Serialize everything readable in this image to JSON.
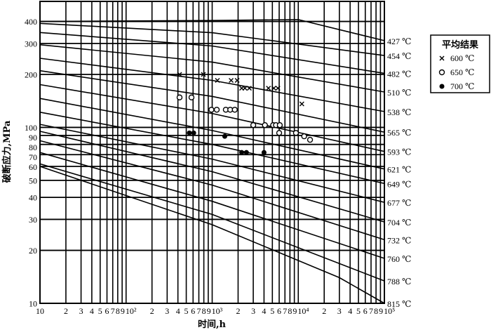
{
  "chart_data": {
    "type": "line",
    "title": "",
    "xlabel": "时间,h",
    "ylabel": "破断应力,MPa",
    "xscale": "log",
    "yscale": "log",
    "xlim": [
      10,
      100000
    ],
    "ylim": [
      10,
      520
    ],
    "grid": true,
    "legend_placement": "right",
    "x_tick_labels": [
      {
        "v": 10,
        "t": "10"
      },
      {
        "v": 20,
        "t": "2"
      },
      {
        "v": 30,
        "t": "3"
      },
      {
        "v": 40,
        "t": "4"
      },
      {
        "v": 50,
        "t": "5"
      },
      {
        "v": 60,
        "t": "6"
      },
      {
        "v": 70,
        "t": "7"
      },
      {
        "v": 80,
        "t": "8"
      },
      {
        "v": 90,
        "t": "9"
      },
      {
        "v": 100,
        "t": "10²"
      },
      {
        "v": 200,
        "t": "2"
      },
      {
        "v": 300,
        "t": "3"
      },
      {
        "v": 400,
        "t": "4"
      },
      {
        "v": 500,
        "t": "5"
      },
      {
        "v": 600,
        "t": "6"
      },
      {
        "v": 700,
        "t": "7"
      },
      {
        "v": 800,
        "t": "8"
      },
      {
        "v": 900,
        "t": "9"
      },
      {
        "v": 1000,
        "t": "10³"
      },
      {
        "v": 2000,
        "t": "2"
      },
      {
        "v": 3000,
        "t": "3"
      },
      {
        "v": 4000,
        "t": "4"
      },
      {
        "v": 5000,
        "t": "5"
      },
      {
        "v": 6000,
        "t": "6"
      },
      {
        "v": 7000,
        "t": "7"
      },
      {
        "v": 8000,
        "t": "8"
      },
      {
        "v": 9000,
        "t": "9"
      },
      {
        "v": 10000,
        "t": "10⁴"
      },
      {
        "v": 20000,
        "t": "2"
      },
      {
        "v": 30000,
        "t": "3"
      },
      {
        "v": 40000,
        "t": "4"
      },
      {
        "v": 50000,
        "t": "5"
      },
      {
        "v": 60000,
        "t": "6"
      },
      {
        "v": 70000,
        "t": "7"
      },
      {
        "v": 80000,
        "t": "8"
      },
      {
        "v": 90000,
        "t": "9"
      },
      {
        "v": 100000,
        "t": "10⁵"
      }
    ],
    "y_tick_labels": [
      {
        "v": 10,
        "t": "10"
      },
      {
        "v": 20,
        "t": "20"
      },
      {
        "v": 30,
        "t": "30"
      },
      {
        "v": 40,
        "t": "40"
      },
      {
        "v": 50,
        "t": "50"
      },
      {
        "v": 60,
        "t": "60"
      },
      {
        "v": 70,
        "t": "70"
      },
      {
        "v": 80,
        "t": "80"
      },
      {
        "v": 90,
        "t": "90"
      },
      {
        "v": 100,
        "t": "100"
      },
      {
        "v": 200,
        "t": "200"
      },
      {
        "v": 300,
        "t": "300"
      },
      {
        "v": 400,
        "t": "400"
      }
    ],
    "curves": [
      {
        "label": "427 ℃",
        "points": [
          [
            10,
            400
          ],
          [
            1000,
            405
          ],
          [
            10000,
            410
          ],
          [
            100000,
            311
          ]
        ]
      },
      {
        "label": "454 ℃",
        "points": [
          [
            10,
            390
          ],
          [
            1000,
            345
          ],
          [
            100000,
            256
          ]
        ]
      },
      {
        "label": "482 ℃",
        "points": [
          [
            10,
            346
          ],
          [
            1000,
            290
          ],
          [
            100000,
            203
          ]
        ]
      },
      {
        "label": "510 ℃",
        "points": [
          [
            10,
            295
          ],
          [
            1000,
            235
          ],
          [
            100000,
            159
          ]
        ]
      },
      {
        "label": "538 ℃",
        "points": [
          [
            10,
            247
          ],
          [
            1000,
            185
          ],
          [
            100000,
            123
          ]
        ]
      },
      {
        "label": "565 ℃",
        "points": [
          [
            10,
            210
          ],
          [
            1000,
            150
          ],
          [
            100000,
            94
          ]
        ]
      },
      {
        "label": "593 ℃",
        "points": [
          [
            10,
            175
          ],
          [
            1000,
            120
          ],
          [
            100000,
            73
          ]
        ]
      },
      {
        "label": "621 ℃",
        "points": [
          [
            10,
            146
          ],
          [
            1000,
            96
          ],
          [
            100000,
            58
          ]
        ]
      },
      {
        "label": "649 ℃",
        "points": [
          [
            10,
            122
          ],
          [
            1000,
            80
          ],
          [
            100000,
            48
          ]
        ]
      },
      {
        "label": "677 ℃",
        "points": [
          [
            10,
            104
          ],
          [
            1000,
            66
          ],
          [
            100000,
            37.5
          ]
        ]
      },
      {
        "label": "704 ℃",
        "points": [
          [
            10,
            95
          ],
          [
            1000,
            56
          ],
          [
            100000,
            29
          ]
        ]
      },
      {
        "label": "732 ℃",
        "points": [
          [
            10,
            84
          ],
          [
            1000,
            47
          ],
          [
            100000,
            23
          ]
        ]
      },
      {
        "label": "760 ℃",
        "points": [
          [
            10,
            72
          ],
          [
            1000,
            38
          ],
          [
            100000,
            18
          ]
        ]
      },
      {
        "label": "788 ℃",
        "points": [
          [
            10,
            62
          ],
          [
            1000,
            32
          ],
          [
            100000,
            13.4
          ]
        ]
      },
      {
        "label": "815 ℃",
        "points": [
          [
            10,
            60
          ],
          [
            1000,
            28
          ],
          [
            30000,
            14
          ],
          [
            100000,
            10
          ]
        ]
      }
    ],
    "series": [
      {
        "name": "600 ℃",
        "marker": "cross",
        "points": [
          [
            418,
            200
          ],
          [
            790,
            200
          ],
          [
            1150,
            185
          ],
          [
            1660,
            185
          ],
          [
            1950,
            185
          ],
          [
            2200,
            167
          ],
          [
            2400,
            167
          ],
          [
            2700,
            167
          ],
          [
            4500,
            167
          ],
          [
            5200,
            167
          ],
          [
            5800,
            167
          ],
          [
            11000,
            136
          ]
        ]
      },
      {
        "name": "650 ℃",
        "marker": "open-circle",
        "points": [
          [
            418,
            148
          ],
          [
            575,
            148
          ],
          [
            980,
            126
          ],
          [
            1130,
            126
          ],
          [
            1440,
            126
          ],
          [
            1620,
            126
          ],
          [
            1830,
            126
          ],
          [
            3000,
            103
          ],
          [
            4100,
            103
          ],
          [
            5100,
            103
          ],
          [
            5500,
            103
          ],
          [
            6100,
            103
          ],
          [
            6000,
            93
          ],
          [
            9400,
            93
          ],
          [
            11700,
            89
          ],
          [
            13700,
            85
          ]
        ]
      },
      {
        "name": "700 ℃",
        "marker": "filled-circle",
        "points": [
          [
            543,
            93
          ],
          [
            610,
            93
          ],
          [
            1400,
            89
          ],
          [
            2200,
            72
          ],
          [
            2500,
            72
          ],
          [
            4000,
            72
          ]
        ]
      }
    ],
    "legend": {
      "title": "平均结果"
    }
  }
}
